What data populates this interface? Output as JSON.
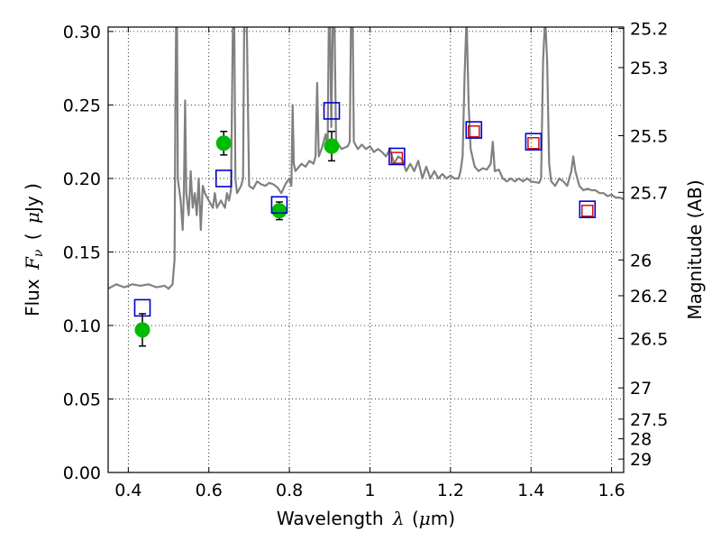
{
  "chart_data": {
    "type": "scatter",
    "title": "",
    "xlabel": "Wavelength",
    "xlabel_symbol": "λ",
    "xlabel_unit_prefix": "(",
    "xlabel_unit_mu": "μ",
    "xlabel_unit_suffix": "m)",
    "ylabel": "Flux",
    "ylabel_symbol": "F",
    "ylabel_subscript": "ν",
    "ylabel_unit_prefix": "(",
    "ylabel_unit_mu": "μ",
    "ylabel_unit_suffix": "Jy )",
    "y2label": "Magnitude (AB)",
    "xlim": [
      0.35,
      1.63
    ],
    "ylim": [
      0.0,
      0.303
    ],
    "grid": true,
    "x_ticks": [
      0.4,
      0.6,
      0.8,
      1.0,
      1.2,
      1.4,
      1.6
    ],
    "x_tick_labels": [
      "0.4",
      "0.6",
      "0.8",
      "1",
      "1.2",
      "1.4",
      "1.6"
    ],
    "y_ticks": [
      0.0,
      0.05,
      0.1,
      0.15,
      0.2,
      0.25,
      0.3
    ],
    "y_tick_labels": [
      "0.00",
      "0.05",
      "0.10",
      "0.15",
      "0.20",
      "0.25",
      "0.30"
    ],
    "mag_ticks": [
      25.2,
      25.3,
      25.5,
      25.7,
      26,
      26.2,
      26.5,
      27,
      27.5,
      28,
      29
    ],
    "mag_tick_labels": [
      "25.2",
      "25.3",
      "25.5",
      "25.7",
      "26",
      "26.2",
      "26.5",
      "27",
      "27.5",
      "28",
      "29"
    ],
    "series": [
      {
        "kind": "model-spectrum",
        "color": "#808080",
        "points": [
          [
            0.35,
            0.125
          ],
          [
            0.37,
            0.128
          ],
          [
            0.39,
            0.126
          ],
          [
            0.41,
            0.128
          ],
          [
            0.43,
            0.127
          ],
          [
            0.45,
            0.128
          ],
          [
            0.47,
            0.126
          ],
          [
            0.49,
            0.127
          ],
          [
            0.5,
            0.125
          ],
          [
            0.51,
            0.128
          ],
          [
            0.515,
            0.145
          ],
          [
            0.517,
            0.25
          ],
          [
            0.519,
            0.31
          ],
          [
            0.521,
            0.31
          ],
          [
            0.523,
            0.2
          ],
          [
            0.53,
            0.185
          ],
          [
            0.535,
            0.165
          ],
          [
            0.538,
            0.19
          ],
          [
            0.541,
            0.253
          ],
          [
            0.544,
            0.19
          ],
          [
            0.55,
            0.175
          ],
          [
            0.555,
            0.205
          ],
          [
            0.56,
            0.18
          ],
          [
            0.565,
            0.19
          ],
          [
            0.57,
            0.175
          ],
          [
            0.575,
            0.2
          ],
          [
            0.58,
            0.165
          ],
          [
            0.585,
            0.195
          ],
          [
            0.59,
            0.19
          ],
          [
            0.6,
            0.185
          ],
          [
            0.61,
            0.18
          ],
          [
            0.615,
            0.19
          ],
          [
            0.62,
            0.18
          ],
          [
            0.63,
            0.185
          ],
          [
            0.64,
            0.18
          ],
          [
            0.645,
            0.19
          ],
          [
            0.65,
            0.185
          ],
          [
            0.655,
            0.192
          ],
          [
            0.66,
            0.31
          ],
          [
            0.663,
            0.31
          ],
          [
            0.666,
            0.2
          ],
          [
            0.67,
            0.19
          ],
          [
            0.68,
            0.195
          ],
          [
            0.685,
            0.2
          ],
          [
            0.688,
            0.31
          ],
          [
            0.694,
            0.31
          ],
          [
            0.7,
            0.195
          ],
          [
            0.71,
            0.193
          ],
          [
            0.72,
            0.198
          ],
          [
            0.73,
            0.196
          ],
          [
            0.74,
            0.195
          ],
          [
            0.75,
            0.197
          ],
          [
            0.76,
            0.196
          ],
          [
            0.77,
            0.194
          ],
          [
            0.78,
            0.19
          ],
          [
            0.79,
            0.196
          ],
          [
            0.8,
            0.2
          ],
          [
            0.805,
            0.195
          ],
          [
            0.808,
            0.25
          ],
          [
            0.811,
            0.21
          ],
          [
            0.815,
            0.205
          ],
          [
            0.83,
            0.21
          ],
          [
            0.84,
            0.208
          ],
          [
            0.85,
            0.212
          ],
          [
            0.86,
            0.21
          ],
          [
            0.865,
            0.215
          ],
          [
            0.869,
            0.265
          ],
          [
            0.873,
            0.215
          ],
          [
            0.88,
            0.22
          ],
          [
            0.885,
            0.225
          ],
          [
            0.89,
            0.23
          ],
          [
            0.895,
            0.22
          ],
          [
            0.898,
            0.31
          ],
          [
            0.901,
            0.31
          ],
          [
            0.904,
            0.235
          ],
          [
            0.908,
            0.31
          ],
          [
            0.912,
            0.31
          ],
          [
            0.916,
            0.225
          ],
          [
            0.93,
            0.22
          ],
          [
            0.945,
            0.222
          ],
          [
            0.95,
            0.225
          ],
          [
            0.953,
            0.31
          ],
          [
            0.957,
            0.31
          ],
          [
            0.96,
            0.225
          ],
          [
            0.97,
            0.22
          ],
          [
            0.98,
            0.223
          ],
          [
            0.99,
            0.22
          ],
          [
            1.0,
            0.222
          ],
          [
            1.01,
            0.218
          ],
          [
            1.02,
            0.22
          ],
          [
            1.03,
            0.218
          ],
          [
            1.04,
            0.215
          ],
          [
            1.05,
            0.22
          ],
          [
            1.06,
            0.21
          ],
          [
            1.07,
            0.215
          ],
          [
            1.08,
            0.213
          ],
          [
            1.09,
            0.205
          ],
          [
            1.1,
            0.21
          ],
          [
            1.11,
            0.205
          ],
          [
            1.12,
            0.212
          ],
          [
            1.13,
            0.2
          ],
          [
            1.14,
            0.208
          ],
          [
            1.15,
            0.2
          ],
          [
            1.16,
            0.205
          ],
          [
            1.17,
            0.2
          ],
          [
            1.18,
            0.203
          ],
          [
            1.19,
            0.2
          ],
          [
            1.2,
            0.202
          ],
          [
            1.21,
            0.2
          ],
          [
            1.22,
            0.2
          ],
          [
            1.225,
            0.205
          ],
          [
            1.23,
            0.215
          ],
          [
            1.235,
            0.27
          ],
          [
            1.24,
            0.31
          ],
          [
            1.245,
            0.25
          ],
          [
            1.25,
            0.22
          ],
          [
            1.26,
            0.208
          ],
          [
            1.27,
            0.205
          ],
          [
            1.28,
            0.207
          ],
          [
            1.29,
            0.206
          ],
          [
            1.3,
            0.21
          ],
          [
            1.305,
            0.225
          ],
          [
            1.31,
            0.205
          ],
          [
            1.32,
            0.206
          ],
          [
            1.33,
            0.2
          ],
          [
            1.34,
            0.198
          ],
          [
            1.35,
            0.2
          ],
          [
            1.36,
            0.198
          ],
          [
            1.37,
            0.2
          ],
          [
            1.38,
            0.198
          ],
          [
            1.39,
            0.2
          ],
          [
            1.4,
            0.198
          ],
          [
            1.42,
            0.197
          ],
          [
            1.425,
            0.2
          ],
          [
            1.43,
            0.28
          ],
          [
            1.435,
            0.31
          ],
          [
            1.44,
            0.28
          ],
          [
            1.445,
            0.21
          ],
          [
            1.45,
            0.198
          ],
          [
            1.46,
            0.195
          ],
          [
            1.47,
            0.2
          ],
          [
            1.48,
            0.198
          ],
          [
            1.49,
            0.195
          ],
          [
            1.5,
            0.205
          ],
          [
            1.505,
            0.215
          ],
          [
            1.51,
            0.205
          ],
          [
            1.52,
            0.195
          ],
          [
            1.53,
            0.192
          ],
          [
            1.54,
            0.193
          ],
          [
            1.55,
            0.192
          ],
          [
            1.56,
            0.192
          ],
          [
            1.57,
            0.19
          ],
          [
            1.58,
            0.19
          ],
          [
            1.59,
            0.188
          ],
          [
            1.6,
            0.189
          ],
          [
            1.61,
            0.187
          ],
          [
            1.62,
            0.187
          ],
          [
            1.63,
            0.186
          ]
        ]
      },
      {
        "kind": "observed",
        "color": "#00bb00",
        "marker": "circle",
        "points": [
          {
            "x": 0.435,
            "y": 0.097,
            "err": 0.011
          },
          {
            "x": 0.637,
            "y": 0.224,
            "err": 0.008
          },
          {
            "x": 0.775,
            "y": 0.178,
            "err": 0.006
          },
          {
            "x": 0.905,
            "y": 0.222,
            "err": 0.01
          }
        ]
      },
      {
        "kind": "model-photometry",
        "color": "#0000cc",
        "marker": "square",
        "points": [
          {
            "x": 0.435,
            "y": 0.112
          },
          {
            "x": 0.637,
            "y": 0.2
          },
          {
            "x": 0.775,
            "y": 0.182
          },
          {
            "x": 0.905,
            "y": 0.246
          },
          {
            "x": 1.067,
            "y": 0.215
          },
          {
            "x": 1.258,
            "y": 0.233
          },
          {
            "x": 1.406,
            "y": 0.225
          },
          {
            "x": 1.54,
            "y": 0.179
          }
        ]
      },
      {
        "kind": "model-photometry-ir",
        "color": "#cc0000",
        "marker": "square",
        "points": [
          {
            "x": 1.067,
            "y": 0.214
          },
          {
            "x": 1.258,
            "y": 0.232
          },
          {
            "x": 1.406,
            "y": 0.224
          },
          {
            "x": 1.54,
            "y": 0.178
          }
        ]
      }
    ]
  }
}
